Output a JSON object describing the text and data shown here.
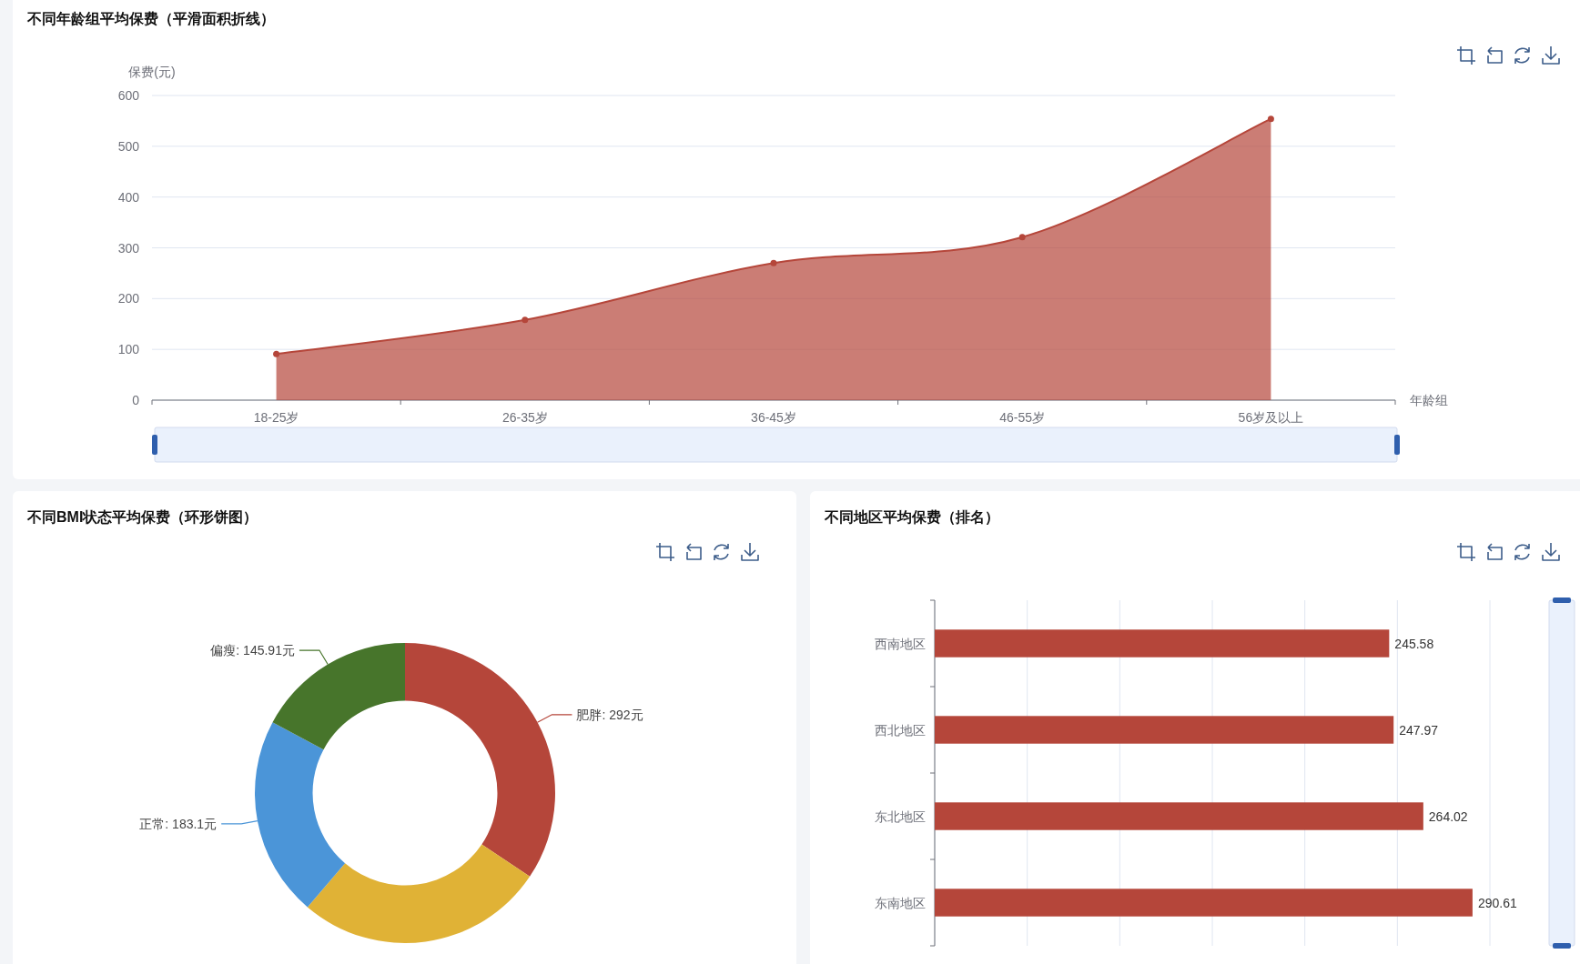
{
  "chart_data": [
    {
      "type": "area",
      "title": "不同年龄组平均保费（平滑面积折线）",
      "xlabel": "年龄组",
      "ylabel": "保费(元)",
      "categories": [
        "18-25岁",
        "26-35岁",
        "36-45岁",
        "46-55岁",
        "56岁及以上"
      ],
      "values": [
        91,
        158,
        270,
        321,
        554
      ],
      "color": "#b5463a",
      "ylim": [
        0,
        600
      ],
      "yticks": [
        0,
        100,
        200,
        300,
        400,
        500,
        600
      ],
      "grid": "y",
      "marker": "circle",
      "line_style": "solid"
    },
    {
      "type": "donut",
      "title": "不同BMI状态平均保费（环形饼图）",
      "categories": [
        "肥胖",
        null,
        "正常",
        "偏瘦"
      ],
      "values": [
        292,
        228,
        183.1,
        145.91
      ],
      "colors": [
        "#b5463a",
        "#e0b236",
        "#4b95d8",
        "#47752b"
      ],
      "value_labels": [
        "292元",
        null,
        "183.1元",
        "145.91元"
      ]
    },
    {
      "type": "bar",
      "orientation": "horizontal",
      "title": "不同地区平均保费（排名）",
      "categories": [
        "西南地区",
        "西北地区",
        "东北地区",
        "东南地区"
      ],
      "values": [
        245.58,
        247.97,
        264.02,
        290.61
      ],
      "color": "#b5463a",
      "xlim": [
        0,
        300
      ],
      "xticks": [
        {
          "value": 0,
          "label": null
        },
        {
          "value": 50,
          "label": null
        },
        {
          "value": 100,
          "label": null
        },
        {
          "value": 150,
          "label": null
        },
        {
          "value": 200,
          "label": null
        },
        {
          "value": 250,
          "label": null
        },
        {
          "value": 300,
          "label": null
        }
      ],
      "grid": "x",
      "data_labels": true,
      "tick_labels": "y"
    }
  ]
}
